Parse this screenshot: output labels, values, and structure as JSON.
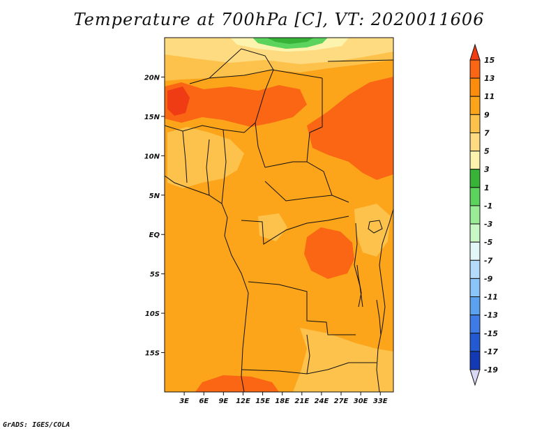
{
  "title": "Temperature at 700hPa [C], VT: 2020011606",
  "credit": "GrADS: IGES/COLA",
  "map": {
    "lon_range": [
      0,
      35
    ],
    "lat_range": [
      -20,
      25
    ],
    "lat_ticks": [
      {
        "value": 20,
        "label": "20N"
      },
      {
        "value": 15,
        "label": "15N"
      },
      {
        "value": 10,
        "label": "10N"
      },
      {
        "value": 5,
        "label": "5N"
      },
      {
        "value": 0,
        "label": "EQ"
      },
      {
        "value": -5,
        "label": "5S"
      },
      {
        "value": -10,
        "label": "10S"
      },
      {
        "value": -15,
        "label": "15S"
      }
    ],
    "lon_ticks": [
      {
        "value": 3,
        "label": "3E"
      },
      {
        "value": 6,
        "label": "6E"
      },
      {
        "value": 9,
        "label": "9E"
      },
      {
        "value": 12,
        "label": "12E"
      },
      {
        "value": 15,
        "label": "15E"
      },
      {
        "value": 18,
        "label": "18E"
      },
      {
        "value": 21,
        "label": "21E"
      },
      {
        "value": 24,
        "label": "24E"
      },
      {
        "value": 27,
        "label": "27E"
      },
      {
        "value": 30,
        "label": "30E"
      },
      {
        "value": 33,
        "label": "33E"
      }
    ]
  },
  "colorbar": {
    "levels": [
      "15",
      "13",
      "11",
      "9",
      "7",
      "5",
      "3",
      "1",
      "-1",
      "-3",
      "-5",
      "-7",
      "-9",
      "-11",
      "-13",
      "-15",
      "-17",
      "-19"
    ],
    "colors": [
      "#f03c14",
      "#fa6614",
      "#fc8c0c",
      "#fca41a",
      "#fdc24c",
      "#feda80",
      "#fcf4ae",
      "#37b337",
      "#5cd35c",
      "#9bec97",
      "#c8f8c4",
      "#e2f7f7",
      "#b5dcfa",
      "#8ac4f8",
      "#5aa2f0",
      "#3e7be6",
      "#235ad2",
      "#1439b4",
      "#0a1f8c",
      "#d8d8f4"
    ]
  }
}
